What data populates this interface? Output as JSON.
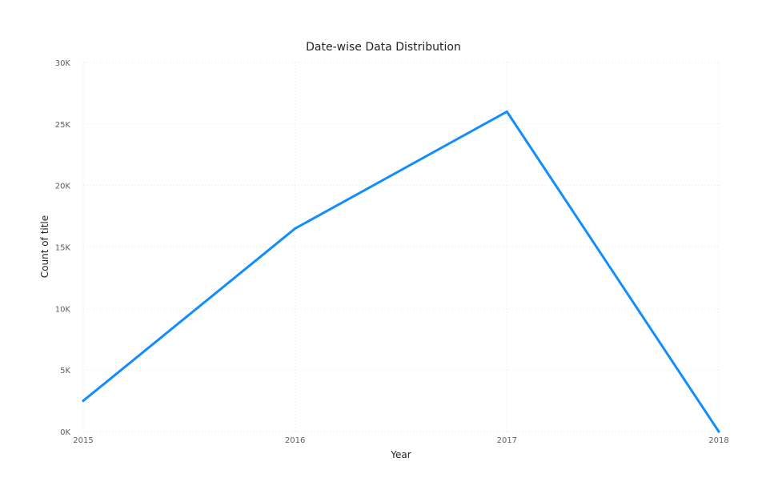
{
  "chart_data": {
    "type": "line",
    "title": "Date-wise Data Distribution",
    "xlabel": "Year",
    "ylabel": "Count of title",
    "categories": [
      "2015",
      "2016",
      "2017",
      "2018"
    ],
    "series": [
      {
        "values": [
          2500,
          16500,
          26000,
          0
        ]
      }
    ],
    "ylim": [
      0,
      30000
    ],
    "yticks": [
      0,
      5000,
      10000,
      15000,
      20000,
      25000,
      30000
    ],
    "ytick_labels": [
      "0K",
      "5K",
      "10K",
      "15K",
      "20K",
      "25K",
      "30K"
    ],
    "grid": true,
    "colors": {
      "series": "#118DFF"
    }
  }
}
